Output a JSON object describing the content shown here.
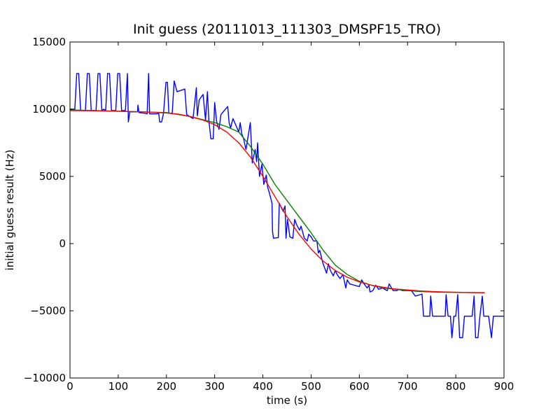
{
  "chart_data": {
    "type": "line",
    "title": "Init guess (20111013_111303_DMSPF15_TRO)",
    "xlabel": "time (s)",
    "ylabel": "initial guess result (Hz)",
    "xlim": [
      0,
      900
    ],
    "ylim": [
      -10000,
      15000
    ],
    "xticks": [
      0,
      100,
      200,
      300,
      400,
      500,
      600,
      700,
      800,
      900
    ],
    "yticks": [
      -10000,
      -5000,
      0,
      5000,
      10000,
      15000
    ],
    "grid": false,
    "series": [
      {
        "color": "#0000ff",
        "points": [
          [
            0,
            10000
          ],
          [
            10,
            10000
          ],
          [
            14,
            12650
          ],
          [
            18,
            12650
          ],
          [
            22,
            9900
          ],
          [
            32,
            9900
          ],
          [
            36,
            12650
          ],
          [
            40,
            12650
          ],
          [
            44,
            9900
          ],
          [
            54,
            9900
          ],
          [
            58,
            12650
          ],
          [
            62,
            12650
          ],
          [
            66,
            9900
          ],
          [
            70,
            10000
          ],
          [
            74,
            9900
          ],
          [
            78,
            12650
          ],
          [
            82,
            12650
          ],
          [
            86,
            9900
          ],
          [
            95,
            9900
          ],
          [
            99,
            12650
          ],
          [
            103,
            12650
          ],
          [
            107,
            9900
          ],
          [
            115,
            9900
          ],
          [
            119,
            12650
          ],
          [
            121,
            9050
          ],
          [
            124,
            9800
          ],
          [
            130,
            9800
          ],
          [
            140,
            9800
          ],
          [
            141,
            10300
          ],
          [
            143,
            9750
          ],
          [
            155,
            9700
          ],
          [
            160,
            9650
          ],
          [
            163,
            12650
          ],
          [
            165,
            9650
          ],
          [
            180,
            9650
          ],
          [
            184,
            9700
          ],
          [
            186,
            9050
          ],
          [
            190,
            9050
          ],
          [
            194,
            9700
          ],
          [
            199,
            12000
          ],
          [
            202,
            12000
          ],
          [
            205,
            9700
          ],
          [
            210,
            9700
          ],
          [
            212,
            9650
          ],
          [
            216,
            12100
          ],
          [
            222,
            11300
          ],
          [
            238,
            11500
          ],
          [
            242,
            9600
          ],
          [
            255,
            9300
          ],
          [
            262,
            11600
          ],
          [
            264,
            9500
          ],
          [
            268,
            10700
          ],
          [
            276,
            11100
          ],
          [
            281,
            9200
          ],
          [
            285,
            11300
          ],
          [
            288,
            9150
          ],
          [
            292,
            7800
          ],
          [
            297,
            7800
          ],
          [
            300,
            10500
          ],
          [
            304,
            9100
          ],
          [
            309,
            8500
          ],
          [
            313,
            9600
          ],
          [
            327,
            10200
          ],
          [
            330,
            9000
          ],
          [
            333,
            8600
          ],
          [
            338,
            9300
          ],
          [
            350,
            8300
          ],
          [
            353,
            9000
          ],
          [
            356,
            8200
          ],
          [
            360,
            7800
          ],
          [
            365,
            7000
          ],
          [
            374,
            9000
          ],
          [
            378,
            6000
          ],
          [
            384,
            7000
          ],
          [
            387,
            6100
          ],
          [
            389,
            7500
          ],
          [
            393,
            5000
          ],
          [
            398,
            5900
          ],
          [
            402,
            4400
          ],
          [
            407,
            5100
          ],
          [
            410,
            4200
          ],
          [
            414,
            3700
          ],
          [
            419,
            3000
          ],
          [
            420,
            900
          ],
          [
            422,
            400
          ],
          [
            432,
            450
          ],
          [
            434,
            3000
          ],
          [
            438,
            2700
          ],
          [
            442,
            2400
          ],
          [
            446,
            2800
          ],
          [
            448,
            400
          ],
          [
            451,
            1800
          ],
          [
            456,
            500
          ],
          [
            462,
            400
          ],
          [
            466,
            1800
          ],
          [
            470,
            1400
          ],
          [
            476,
            1000
          ],
          [
            479,
            1300
          ],
          [
            486,
            400
          ],
          [
            492,
            200
          ],
          [
            495,
            700
          ],
          [
            500,
            500
          ],
          [
            505,
            200
          ],
          [
            512,
            200
          ],
          [
            515,
            -700
          ],
          [
            518,
            -500
          ],
          [
            524,
            -1400
          ],
          [
            528,
            -1800
          ],
          [
            532,
            -2200
          ],
          [
            536,
            -1500
          ],
          [
            540,
            -2000
          ],
          [
            546,
            -2400
          ],
          [
            550,
            -2000
          ],
          [
            554,
            -2300
          ],
          [
            560,
            -2600
          ],
          [
            566,
            -2300
          ],
          [
            572,
            -3300
          ],
          [
            575,
            -2700
          ],
          [
            580,
            -3000
          ],
          [
            590,
            -3100
          ],
          [
            600,
            -3200
          ],
          [
            605,
            -2700
          ],
          [
            610,
            -3000
          ],
          [
            616,
            -3300
          ],
          [
            620,
            -3100
          ],
          [
            622,
            -3600
          ],
          [
            628,
            -3500
          ],
          [
            634,
            -3100
          ],
          [
            640,
            -3400
          ],
          [
            648,
            -3300
          ],
          [
            658,
            -3500
          ],
          [
            662,
            -3000
          ],
          [
            670,
            -3500
          ],
          [
            678,
            -3500
          ],
          [
            682,
            -3400
          ],
          [
            690,
            -3500
          ],
          [
            700,
            -3500
          ],
          [
            708,
            -3500
          ],
          [
            716,
            -3900
          ],
          [
            726,
            -3800
          ],
          [
            730,
            -3750
          ],
          [
            733,
            -5400
          ],
          [
            746,
            -5400
          ],
          [
            748,
            -3900
          ],
          [
            752,
            -5400
          ],
          [
            778,
            -5400
          ],
          [
            780,
            -3800
          ],
          [
            784,
            -5400
          ],
          [
            789,
            -5400
          ],
          [
            792,
            -7000
          ],
          [
            796,
            -5400
          ],
          [
            800,
            -5400
          ],
          [
            804,
            -3800
          ],
          [
            808,
            -7000
          ],
          [
            814,
            -7000
          ],
          [
            818,
            -5400
          ],
          [
            830,
            -5400
          ],
          [
            834,
            -5400
          ],
          [
            838,
            -3900
          ],
          [
            841,
            -7000
          ],
          [
            846,
            -7000
          ],
          [
            850,
            -5400
          ],
          [
            855,
            -3900
          ],
          [
            858,
            -5400
          ],
          [
            868,
            -5400
          ],
          [
            874,
            -7000
          ],
          [
            878,
            -5400
          ],
          [
            900,
            -5400
          ]
        ]
      },
      {
        "color": "#008000",
        "points": [
          [
            0,
            9950
          ],
          [
            100,
            9850
          ],
          [
            150,
            9800
          ],
          [
            200,
            9750
          ],
          [
            250,
            9450
          ],
          [
            300,
            9000
          ],
          [
            325,
            8700
          ],
          [
            350,
            8300
          ],
          [
            375,
            7200
          ],
          [
            400,
            5900
          ],
          [
            425,
            4400
          ],
          [
            450,
            3200
          ],
          [
            475,
            2000
          ],
          [
            500,
            800
          ],
          [
            525,
            -500
          ],
          [
            550,
            -1600
          ],
          [
            575,
            -2300
          ],
          [
            600,
            -2800
          ],
          [
            625,
            -3100
          ],
          [
            650,
            -3300
          ],
          [
            675,
            -3400
          ],
          [
            700,
            -3500
          ],
          [
            725,
            -3560
          ],
          [
            750,
            -3600
          ],
          [
            775,
            -3620
          ],
          [
            800,
            -3630
          ],
          [
            825,
            -3640
          ],
          [
            860,
            -3650
          ]
        ]
      },
      {
        "color": "#ff0000",
        "points": [
          [
            0,
            9900
          ],
          [
            50,
            9880
          ],
          [
            100,
            9850
          ],
          [
            150,
            9800
          ],
          [
            200,
            9720
          ],
          [
            225,
            9630
          ],
          [
            250,
            9450
          ],
          [
            275,
            9200
          ],
          [
            300,
            8850
          ],
          [
            325,
            8300
          ],
          [
            350,
            7500
          ],
          [
            375,
            6400
          ],
          [
            400,
            5000
          ],
          [
            425,
            3500
          ],
          [
            450,
            2000
          ],
          [
            475,
            700
          ],
          [
            500,
            -400
          ],
          [
            525,
            -1300
          ],
          [
            550,
            -2000
          ],
          [
            575,
            -2500
          ],
          [
            600,
            -2850
          ],
          [
            625,
            -3100
          ],
          [
            650,
            -3250
          ],
          [
            675,
            -3380
          ],
          [
            700,
            -3450
          ],
          [
            725,
            -3520
          ],
          [
            750,
            -3570
          ],
          [
            775,
            -3600
          ],
          [
            800,
            -3620
          ],
          [
            830,
            -3640
          ],
          [
            860,
            -3660
          ]
        ]
      }
    ]
  }
}
